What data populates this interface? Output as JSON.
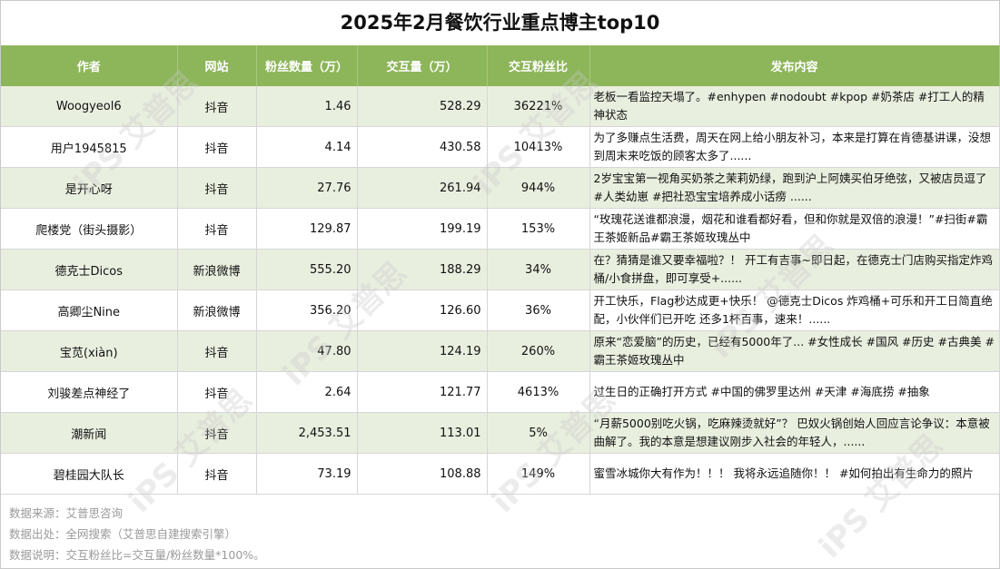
{
  "title": "2025年2月餐饮行业重点博主top10",
  "headers": [
    "作者",
    "网站",
    "粉丝数量（万）",
    "交互量（万）",
    "交互粉丝比",
    "发布内容"
  ],
  "rows": [
    {
      "author": "Woogyeol6",
      "site": "抖音",
      "fans": "1.46",
      "interactions": "528.29",
      "ratio": "36221%",
      "content": "老板一看监控天塌了。#enhypen #nodoubt #kpop #奶茶店 #打工人的精神状态"
    },
    {
      "author": "用户1945815",
      "site": "抖音",
      "fans": "4.14",
      "interactions": "430.58",
      "ratio": "10413%",
      "content": "为了多赚点生活费，周天在网上给小朋友补习，本来是打算在肯德基讲课，没想到周末来吃饭的顾客太多了......"
    },
    {
      "author": "是开心呀",
      "site": "抖音",
      "fans": "27.76",
      "interactions": "261.94",
      "ratio": "944%",
      "content": "2岁宝宝第一视角买奶茶之茉莉奶绿，跑到沪上阿姨买伯牙绝弦，又被店员逗了#人类幼崽 #把社恐宝宝培养成小话痨 ......"
    },
    {
      "author": "爬楼党（街头摄影）",
      "site": "抖音",
      "fans": "129.87",
      "interactions": "199.19",
      "ratio": "153%",
      "content": "“玫瑰花送谁都浪漫，烟花和谁看都好看，但和你就是双倍的浪漫！”#扫街#霸王茶姬新品#霸王茶姬玫瑰丛中"
    },
    {
      "author": "德克士Dicos",
      "site": "新浪微博",
      "fans": "555.20",
      "interactions": "188.29",
      "ratio": "34%",
      "content": "在？猜猜是谁又要幸福啦？！ 开工有吉事~即日起，在德克士门店购买指定炸鸡桶/小食拼盘，即可享受+......"
    },
    {
      "author": "高卿尘Nine",
      "site": "新浪微博",
      "fans": "356.20",
      "interactions": "126.60",
      "ratio": "36%",
      "content": "开工快乐，Flag秒达成更+快乐！ @德克士Dicos 炸鸡桶+可乐和开工日简直绝配，小伙伴们已开吃 还多1杯百事，速来！......"
    },
    {
      "author": "宝苋(xiàn)",
      "site": "抖音",
      "fans": "47.80",
      "interactions": "124.19",
      "ratio": "260%",
      "content": "原来“恋爱脑”的历史，已经有5000年了... #女性成长 #国风 #历史 #古典美 #霸王茶姬玫瑰丛中"
    },
    {
      "author": "刘骏差点神经了",
      "site": "抖音",
      "fans": "2.64",
      "interactions": "121.77",
      "ratio": "4613%",
      "content": "过生日的正确打开方式 #中国的佛罗里达州 #天津 #海底捞 #抽象"
    },
    {
      "author": "潮新闻",
      "site": "抖音",
      "fans": "2,453.51",
      "interactions": "113.01",
      "ratio": "5%",
      "content": "“月薪5000别吃火锅，吃麻辣烫就好”？ 巴奴火锅创始人回应言论争议：本意被曲解了。我的本意是想建议刚步入社会的年轻人，......"
    },
    {
      "author": "碧桂园大队长",
      "site": "抖音",
      "fans": "73.19",
      "interactions": "108.88",
      "ratio": "149%",
      "content": "蜜雪冰城你大有作为！！！ 我将永远追随你！！ #如何拍出有生命力的照片"
    }
  ],
  "footer": {
    "source": "数据来源：艾普思咨询",
    "origin": "数据出处：全网搜索（艾普思自建搜索引擎）",
    "note": "数据说明：交互粉丝比=交互量/粉丝数量*100%。"
  },
  "watermark": "iPS 艾普思"
}
